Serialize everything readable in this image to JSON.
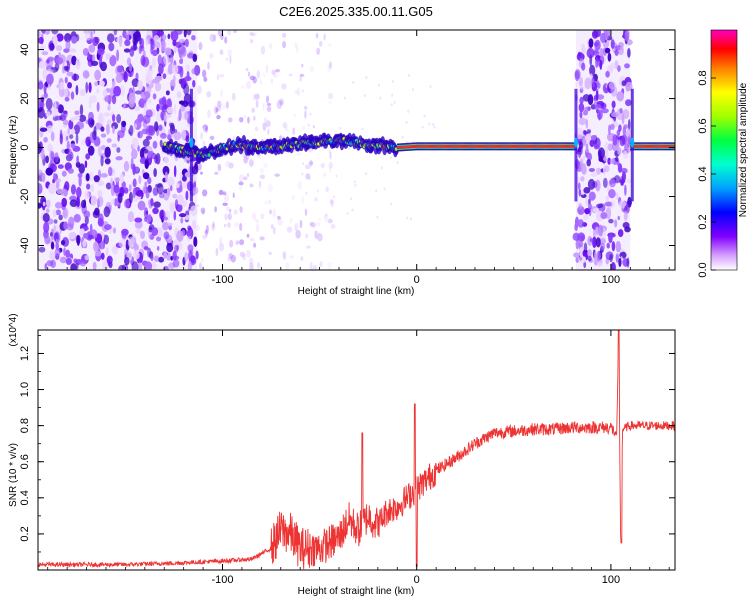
{
  "page": {
    "title": "C2E6.2025.335.00.11.G05"
  },
  "chart_data": [
    {
      "type": "heatmap",
      "title": "C2E6.2025.335.00.11.G05",
      "xlabel": "Height of straight line (km)",
      "ylabel": "Frequency (Hz)",
      "xlim": [
        -195,
        133
      ],
      "ylim": [
        -50,
        48
      ],
      "x_ticks": [
        -100,
        0,
        100
      ],
      "y_ticks": [
        -40,
        -20,
        0,
        20,
        40
      ],
      "colorbar": {
        "label": "Normalized spectral amplitude",
        "range": [
          0,
          1
        ],
        "ticks": [
          "0.0",
          "0.2",
          "0.4",
          "0.6",
          "0.8"
        ],
        "colors": [
          "#ffffff",
          "#c080ff",
          "#6000ff",
          "#0000ff",
          "#00c0ff",
          "#00ff80",
          "#80ff00",
          "#ffff00",
          "#ff8000",
          "#ff0000",
          "#ff00c0"
        ]
      },
      "noise_bands_km": [
        [
          -195,
          -113
        ],
        [
          82,
          110
        ]
      ],
      "ridge": {
        "description_points": [
          {
            "x": -130,
            "y": 0.5
          },
          {
            "x": -110,
            "y": -3
          },
          {
            "x": -95,
            "y": 1
          },
          {
            "x": -75,
            "y": 0
          },
          {
            "x": -55,
            "y": 2
          },
          {
            "x": -40,
            "y": 3
          },
          {
            "x": -25,
            "y": 1
          },
          {
            "x": -10,
            "y": 0
          },
          {
            "x": 0,
            "y": 0.5
          },
          {
            "x": 60,
            "y": 0.5
          },
          {
            "x": 80,
            "y": 0.5
          },
          {
            "x": 112,
            "y": 0.5
          },
          {
            "x": 133,
            "y": 0.5
          }
        ]
      }
    },
    {
      "type": "line",
      "xlabel": "Height of straight line (km)",
      "ylabel": "SNR (10 * v/v)",
      "multiplier": "(x10^4)",
      "xlim": [
        -195,
        133
      ],
      "ylim": [
        0,
        1.33
      ],
      "x_ticks": [
        -100,
        0,
        100
      ],
      "y_ticks": [
        0.2,
        0.4,
        0.6,
        0.8,
        1.0,
        1.2
      ],
      "y_tick_labels": [
        "0.2",
        "0.4",
        "0.6",
        "0.8",
        "1.0",
        "1.2"
      ],
      "series": [
        {
          "color": "#ee3333",
          "x": [
            -195,
            -150,
            -120,
            -100,
            -85,
            -75,
            -70,
            -65,
            -60,
            -50,
            -40,
            -35,
            -30,
            -25,
            -20,
            -15,
            -10,
            -5,
            0,
            5,
            10,
            20,
            30,
            40,
            50,
            60,
            70,
            80,
            90,
            100,
            103,
            104,
            105,
            106,
            110,
            120,
            133
          ],
          "y": [
            0.03,
            0.03,
            0.04,
            0.05,
            0.06,
            0.12,
            0.22,
            0.2,
            0.12,
            0.12,
            0.18,
            0.28,
            0.22,
            0.3,
            0.25,
            0.33,
            0.35,
            0.4,
            0.45,
            0.5,
            0.55,
            0.62,
            0.7,
            0.76,
            0.77,
            0.78,
            0.78,
            0.79,
            0.79,
            0.79,
            0.75,
            1.3,
            0.2,
            0.78,
            0.8,
            0.8,
            0.8
          ]
        }
      ]
    }
  ]
}
